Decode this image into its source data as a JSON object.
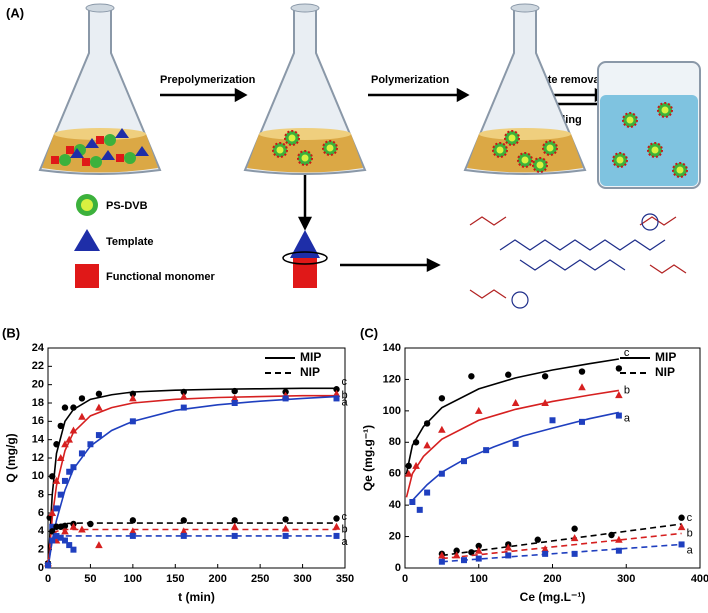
{
  "diagram": {
    "panel_label": "(A)",
    "steps": [
      "Prepolymerization",
      "Polymerization",
      "Template removal",
      "Rebinding"
    ],
    "legend": [
      "PS-DVB",
      "Template",
      "Functional monomer"
    ]
  },
  "chart_data": [
    {
      "type": "scatter",
      "panel_label": "(B)",
      "xlabel": "t (min)",
      "ylabel": "Q (mg/g)",
      "xlim": [
        0,
        350
      ],
      "xticks": [
        0,
        50,
        100,
        150,
        200,
        250,
        300,
        350
      ],
      "ylim": [
        0,
        24
      ],
      "yticks": [
        0,
        2,
        4,
        6,
        8,
        10,
        12,
        14,
        16,
        18,
        20,
        22,
        24
      ],
      "legend_position": "upper right",
      "legend": [
        {
          "name": "MIP",
          "dash": "solid"
        },
        {
          "name": "NIP",
          "dash": "dashed"
        }
      ],
      "series": [
        {
          "label": "c",
          "color": "#000000",
          "marker": "circle",
          "dash": "solid",
          "x": [
            0,
            2,
            5,
            10,
            15,
            20,
            30,
            40,
            60,
            100,
            160,
            220,
            280,
            340
          ],
          "values": [
            0.5,
            5.5,
            10,
            13.5,
            15.5,
            17.5,
            17.5,
            18.5,
            19,
            19,
            19.2,
            19.3,
            19.2,
            19.5
          ],
          "fit_x": [
            0,
            5,
            10,
            20,
            30,
            50,
            75,
            100,
            150,
            200,
            250,
            300,
            340
          ],
          "fit": [
            0,
            8,
            12.5,
            16,
            17.3,
            18.4,
            18.9,
            19.2,
            19.4,
            19.5,
            19.55,
            19.6,
            19.6
          ]
        },
        {
          "label": "b",
          "color": "#d62020",
          "marker": "triangle",
          "dash": "solid",
          "x": [
            0,
            5,
            10,
            15,
            20,
            25,
            30,
            40,
            60,
            100,
            160,
            220,
            280,
            340
          ],
          "values": [
            0.5,
            6,
            9.5,
            12,
            13.5,
            14,
            15,
            16.5,
            17.5,
            18.5,
            18.7,
            18.5,
            18.8,
            19
          ],
          "fit_x": [
            0,
            5,
            10,
            20,
            30,
            50,
            75,
            100,
            150,
            200,
            250,
            300,
            340
          ],
          "fit": [
            0,
            5.5,
            9,
            12.8,
            14.8,
            16.6,
            17.5,
            18,
            18.4,
            18.6,
            18.7,
            18.8,
            18.8
          ]
        },
        {
          "label": "a",
          "color": "#1f3fbf",
          "marker": "square",
          "dash": "solid",
          "x": [
            0,
            5,
            10,
            15,
            20,
            25,
            30,
            40,
            50,
            60,
            100,
            160,
            220,
            280,
            340
          ],
          "values": [
            0.3,
            4.5,
            6.5,
            8,
            9.5,
            10.5,
            11,
            12.5,
            13.5,
            14.5,
            16,
            17.5,
            18,
            18.5,
            18.5
          ],
          "fit_x": [
            0,
            5,
            10,
            20,
            30,
            50,
            75,
            100,
            150,
            200,
            250,
            300,
            340
          ],
          "fit": [
            0,
            3,
            5.2,
            8.5,
            10.8,
            13.3,
            15,
            16,
            17.2,
            17.8,
            18.2,
            18.5,
            18.7
          ]
        },
        {
          "label": "c",
          "color": "#000000",
          "marker": "circle",
          "dash": "dashed",
          "x": [
            0,
            5,
            10,
            15,
            20,
            30,
            50,
            100,
            160,
            220,
            280,
            340
          ],
          "values": [
            0.5,
            4,
            4.5,
            4.5,
            4.6,
            4.8,
            4.8,
            5.2,
            5.2,
            5.2,
            5.3,
            5.4
          ],
          "fit_x": [
            0,
            5,
            10,
            20,
            40,
            100,
            200,
            340
          ],
          "fit": [
            0.5,
            4,
            4.6,
            4.85,
            4.9,
            4.9,
            4.9,
            4.9
          ]
        },
        {
          "label": "b",
          "color": "#d62020",
          "marker": "triangle",
          "dash": "dashed",
          "x": [
            0,
            10,
            20,
            30,
            40,
            60,
            100,
            160,
            220,
            280,
            340
          ],
          "values": [
            0.5,
            3,
            4,
            4.5,
            4.2,
            2.5,
            4,
            4,
            4.5,
            4.3,
            4.5
          ],
          "fit_x": [
            0,
            5,
            10,
            20,
            40,
            100,
            200,
            340
          ],
          "fit": [
            0.5,
            3.4,
            4,
            4.2,
            4.2,
            4.2,
            4.2,
            4.2
          ]
        },
        {
          "label": "a",
          "color": "#1f3fbf",
          "marker": "square",
          "dash": "dashed",
          "x": [
            0,
            5,
            10,
            15,
            20,
            25,
            30,
            100,
            160,
            220,
            280,
            340
          ],
          "values": [
            0.3,
            3,
            3.5,
            3.3,
            3,
            2.5,
            2,
            3.5,
            3.5,
            3.5,
            3.5,
            3.5
          ],
          "fit_x": [
            0,
            5,
            10,
            20,
            40,
            100,
            200,
            340
          ],
          "fit": [
            0.3,
            3,
            3.4,
            3.5,
            3.5,
            3.5,
            3.5,
            3.5
          ]
        }
      ]
    },
    {
      "type": "scatter",
      "panel_label": "(C)",
      "xlabel": "Ce (mg.L⁻¹)",
      "ylabel": "Qe (mg.g⁻¹)",
      "xlim": [
        0,
        400
      ],
      "xticks": [
        0,
        100,
        200,
        300,
        400
      ],
      "ylim": [
        0,
        140
      ],
      "yticks": [
        0,
        20,
        40,
        60,
        80,
        100,
        120,
        140
      ],
      "legend_position": "upper right",
      "legend": [
        {
          "name": "MIP",
          "dash": "solid"
        },
        {
          "name": "NIP",
          "dash": "dashed"
        }
      ],
      "series": [
        {
          "label": "c",
          "color": "#000000",
          "marker": "circle",
          "dash": "solid",
          "x": [
            5,
            15,
            30,
            50,
            90,
            140,
            190,
            240,
            290
          ],
          "values": [
            65,
            80,
            92,
            108,
            122,
            123,
            122,
            125,
            127
          ],
          "fit_x": [
            2,
            10,
            25,
            50,
            100,
            150,
            200,
            250,
            290
          ],
          "fit": [
            60,
            78,
            90,
            102,
            114,
            121,
            126,
            130,
            133
          ]
        },
        {
          "label": "b",
          "color": "#d62020",
          "marker": "triangle",
          "dash": "solid",
          "x": [
            5,
            15,
            30,
            50,
            100,
            150,
            190,
            240,
            290
          ],
          "values": [
            60,
            65,
            78,
            88,
            100,
            105,
            105,
            115,
            110
          ],
          "fit_x": [
            2,
            10,
            25,
            50,
            100,
            150,
            200,
            250,
            290
          ],
          "fit": [
            45,
            60,
            71,
            82,
            94,
            101,
            106,
            110,
            113
          ]
        },
        {
          "label": "a",
          "color": "#1f3fbf",
          "marker": "square",
          "dash": "solid",
          "x": [
            10,
            20,
            30,
            50,
            80,
            110,
            150,
            200,
            240,
            290
          ],
          "values": [
            42,
            37,
            48,
            60,
            68,
            75,
            79,
            94,
            93,
            97
          ],
          "fit_x": [
            10,
            20,
            30,
            50,
            80,
            120,
            160,
            200,
            250,
            290
          ],
          "fit": [
            43,
            48,
            53,
            61,
            69,
            77,
            84,
            89,
            95,
            99
          ]
        },
        {
          "label": "c",
          "color": "#000000",
          "marker": "circle",
          "dash": "dashed",
          "x": [
            50,
            70,
            90,
            100,
            140,
            180,
            230,
            280,
            375
          ],
          "values": [
            9,
            11,
            10,
            14,
            15,
            18,
            25,
            21,
            32
          ],
          "fit_x": [
            50,
            375
          ],
          "fit": [
            8,
            28
          ]
        },
        {
          "label": "b",
          "color": "#d62020",
          "marker": "triangle",
          "dash": "dashed",
          "x": [
            50,
            70,
            100,
            140,
            190,
            230,
            290,
            375
          ],
          "values": [
            8,
            8,
            11,
            13,
            12,
            19,
            18,
            26
          ],
          "fit_x": [
            50,
            375
          ],
          "fit": [
            6,
            22
          ]
        },
        {
          "label": "a",
          "color": "#1f3fbf",
          "marker": "square",
          "dash": "dashed",
          "x": [
            50,
            80,
            100,
            140,
            190,
            230,
            290,
            375
          ],
          "values": [
            4,
            5,
            6,
            8,
            9,
            9,
            11,
            15
          ],
          "fit_x": [
            50,
            375
          ],
          "fit": [
            4,
            15
          ]
        }
      ]
    }
  ]
}
